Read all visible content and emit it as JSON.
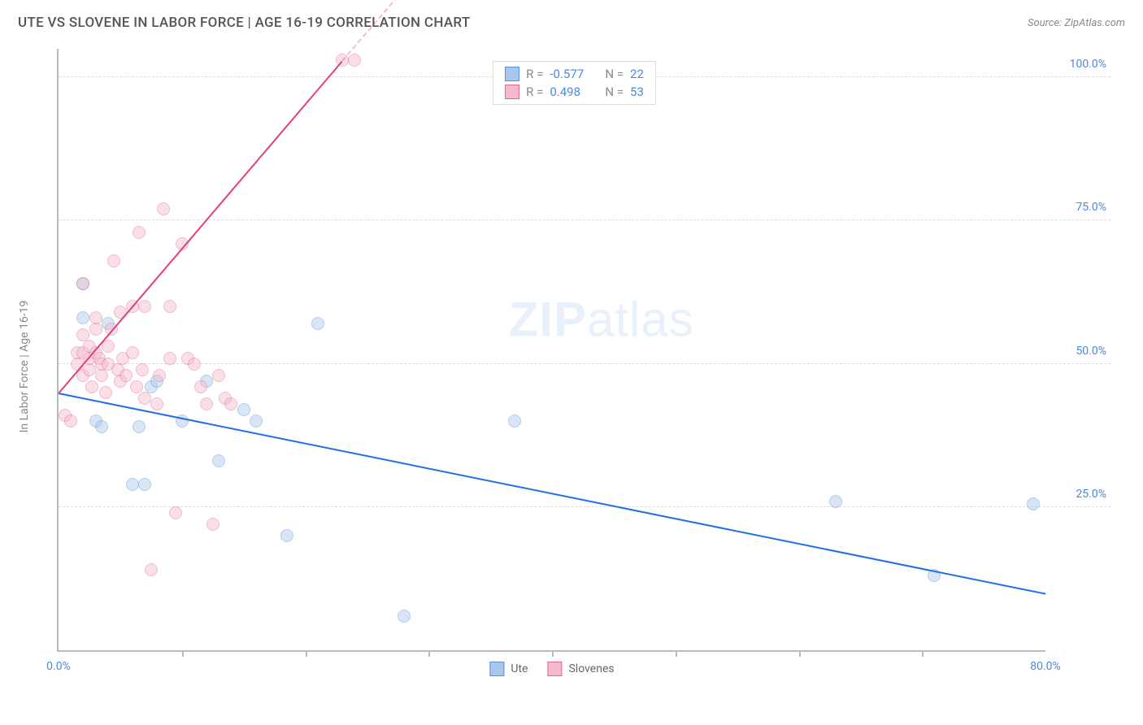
{
  "header": {
    "title": "UTE VS SLOVENE IN LABOR FORCE | AGE 16-19 CORRELATION CHART",
    "source": "Source: ZipAtlas.com"
  },
  "watermark": {
    "bold": "ZIP",
    "rest": "atlas"
  },
  "chart": {
    "type": "scatter",
    "ylabel": "In Labor Force | Age 16-19",
    "xlim": [
      0,
      80
    ],
    "ylim": [
      0,
      105
    ],
    "yticks": [
      {
        "v": 25,
        "label": "25.0%"
      },
      {
        "v": 50,
        "label": "50.0%"
      },
      {
        "v": 75,
        "label": "75.0%"
      },
      {
        "v": 100,
        "label": "100.0%"
      }
    ],
    "xticks_major": [
      {
        "v": 0,
        "label": "0.0%"
      },
      {
        "v": 80,
        "label": "80.0%"
      }
    ],
    "xticks_minor": [
      10,
      20,
      30,
      40,
      50,
      60,
      70
    ],
    "ytick_color": "#4d88e0",
    "xtick_color": "#4d88e0",
    "background": "#ffffff",
    "grid_color": "#dddddd",
    "axis_color": "#bbbbbb",
    "marker_radius": 8,
    "marker_opacity": 0.45,
    "series": [
      {
        "name": "Ute",
        "fill": "#a7c7ee",
        "stroke": "#5b8fd6",
        "trend_color": "#1f6fe0",
        "trend_from": [
          0,
          45
        ],
        "trend_to": [
          80,
          10
        ],
        "points": [
          [
            2,
            64
          ],
          [
            2,
            58
          ],
          [
            3,
            40
          ],
          [
            3.5,
            39
          ],
          [
            4,
            57
          ],
          [
            6,
            29
          ],
          [
            7,
            29
          ],
          [
            6.5,
            39
          ],
          [
            7.5,
            46
          ],
          [
            8,
            47
          ],
          [
            10,
            40
          ],
          [
            12,
            47
          ],
          [
            13,
            33
          ],
          [
            15,
            42
          ],
          [
            16,
            40
          ],
          [
            18.5,
            20
          ],
          [
            21,
            57
          ],
          [
            28,
            6
          ],
          [
            37,
            40
          ],
          [
            63,
            26
          ],
          [
            71,
            13
          ],
          [
            79,
            25.5
          ]
        ]
      },
      {
        "name": "Slovenes",
        "fill": "#f4b9ca",
        "stroke": "#e06a8f",
        "trend_color": "#e34076",
        "trend_from": [
          0,
          45
        ],
        "trend_to": [
          23,
          103
        ],
        "trend_dash_from": [
          23,
          103
        ],
        "trend_dash_to": [
          33,
          128
        ],
        "points": [
          [
            0.5,
            41
          ],
          [
            1,
            40
          ],
          [
            1.5,
            50
          ],
          [
            1.5,
            52
          ],
          [
            2,
            48
          ],
          [
            2,
            52
          ],
          [
            2,
            55
          ],
          [
            2,
            64
          ],
          [
            2.5,
            49
          ],
          [
            2.5,
            51
          ],
          [
            2.5,
            53
          ],
          [
            2.7,
            46
          ],
          [
            3,
            52
          ],
          [
            3,
            56
          ],
          [
            3,
            58
          ],
          [
            3.3,
            51
          ],
          [
            3.5,
            48
          ],
          [
            3.5,
            50
          ],
          [
            3.8,
            45
          ],
          [
            4,
            50
          ],
          [
            4,
            53
          ],
          [
            4.3,
            56
          ],
          [
            4.5,
            68
          ],
          [
            4.8,
            49
          ],
          [
            5,
            47
          ],
          [
            5,
            59
          ],
          [
            5.2,
            51
          ],
          [
            5.5,
            48
          ],
          [
            6,
            52
          ],
          [
            6,
            60
          ],
          [
            6.3,
            46
          ],
          [
            6.5,
            73
          ],
          [
            6.8,
            49
          ],
          [
            7,
            44
          ],
          [
            7,
            60
          ],
          [
            7.5,
            14
          ],
          [
            8,
            43
          ],
          [
            8.2,
            48
          ],
          [
            8.5,
            77
          ],
          [
            9,
            51
          ],
          [
            9,
            60
          ],
          [
            9.5,
            24
          ],
          [
            10,
            71
          ],
          [
            10.5,
            51
          ],
          [
            11,
            50
          ],
          [
            11.5,
            46
          ],
          [
            12,
            43
          ],
          [
            12.5,
            22
          ],
          [
            13,
            48
          ],
          [
            13.5,
            44
          ],
          [
            14,
            43
          ],
          [
            23,
            103
          ],
          [
            24,
            103
          ]
        ]
      }
    ],
    "stats_box": {
      "rows": [
        {
          "swatch_fill": "#a7c7ee",
          "swatch_stroke": "#5b8fd6",
          "r_label": "R =",
          "r_val": "-0.577",
          "n_label": "N =",
          "n_val": "22"
        },
        {
          "swatch_fill": "#f4b9ca",
          "swatch_stroke": "#e06a8f",
          "r_label": "R =",
          "r_val": "0.498",
          "n_label": "N =",
          "n_val": "53"
        }
      ],
      "label_color": "#888",
      "value_color": "#4d88e0"
    },
    "bottom_legend": [
      {
        "swatch_fill": "#a7c7ee",
        "swatch_stroke": "#5b8fd6",
        "label": "Ute"
      },
      {
        "swatch_fill": "#f4b9ca",
        "swatch_stroke": "#e06a8f",
        "label": "Slovenes"
      }
    ]
  }
}
